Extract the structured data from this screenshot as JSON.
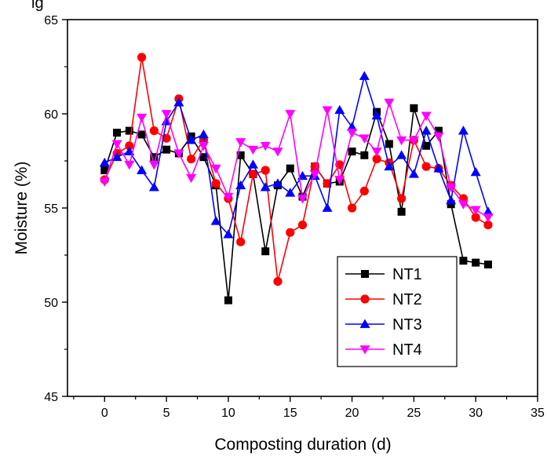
{
  "chart_data": {
    "type": "line",
    "title": "ig",
    "xlabel": "Composting duration (d)",
    "ylabel": "Moisture (%)",
    "xlim": [
      -3,
      35
    ],
    "ylim": [
      45,
      65
    ],
    "xticks": [
      0,
      5,
      10,
      15,
      20,
      25,
      30,
      35
    ],
    "yticks": [
      45,
      50,
      55,
      60,
      65
    ],
    "legend_position": "lower-right-inside",
    "x": [
      0,
      1,
      2,
      3,
      4,
      5,
      6,
      7,
      8,
      9,
      10,
      11,
      12,
      13,
      14,
      15,
      16,
      17,
      18,
      19,
      20,
      21,
      22,
      23,
      24,
      25,
      26,
      27,
      28,
      29,
      30,
      31
    ],
    "series": [
      {
        "name": "NT1",
        "color": "#000000",
        "marker": "square",
        "values": [
          57.0,
          59.0,
          59.1,
          58.9,
          57.7,
          58.1,
          57.9,
          58.8,
          57.7,
          56.2,
          50.1,
          57.8,
          56.8,
          52.7,
          56.2,
          57.1,
          55.6,
          57.2,
          56.3,
          56.4,
          58.0,
          57.8,
          60.1,
          58.4,
          54.8,
          60.3,
          58.3,
          59.1,
          55.2,
          52.2,
          52.1,
          52.0
        ]
      },
      {
        "name": "NT2",
        "color": "#ff0000",
        "marker": "circle",
        "values": [
          56.5,
          57.9,
          58.3,
          63.0,
          59.1,
          58.7,
          60.8,
          57.6,
          58.6,
          56.3,
          55.5,
          53.2,
          56.8,
          57.0,
          51.1,
          53.7,
          54.1,
          57.2,
          56.3,
          57.3,
          55.0,
          55.9,
          57.6,
          57.4,
          55.5,
          58.6,
          57.2,
          57.1,
          56.2,
          55.5,
          54.5,
          54.1
        ]
      },
      {
        "name": "NT3",
        "color": "#0000ff",
        "marker": "triangle-up",
        "values": [
          57.4,
          57.7,
          58.0,
          57.0,
          56.1,
          59.6,
          60.6,
          58.6,
          58.9,
          54.3,
          53.6,
          56.2,
          57.3,
          56.1,
          56.3,
          55.8,
          56.7,
          56.7,
          55.0,
          60.2,
          59.3,
          62.0,
          59.9,
          57.2,
          57.8,
          56.8,
          59.1,
          57.1,
          55.4,
          59.1,
          56.9,
          54.8
        ]
      },
      {
        "name": "NT4",
        "color": "#ff00ff",
        "marker": "triangle-down",
        "values": [
          56.4,
          58.4,
          57.3,
          59.8,
          57.3,
          60.0,
          57.9,
          56.6,
          58.3,
          57.1,
          55.6,
          58.5,
          58.1,
          58.3,
          58.0,
          60.0,
          55.5,
          56.8,
          60.2,
          56.5,
          59.0,
          58.7,
          58.0,
          60.6,
          58.6,
          58.6,
          59.9,
          58.8,
          56.1,
          55.2,
          54.9,
          54.5
        ]
      }
    ]
  }
}
